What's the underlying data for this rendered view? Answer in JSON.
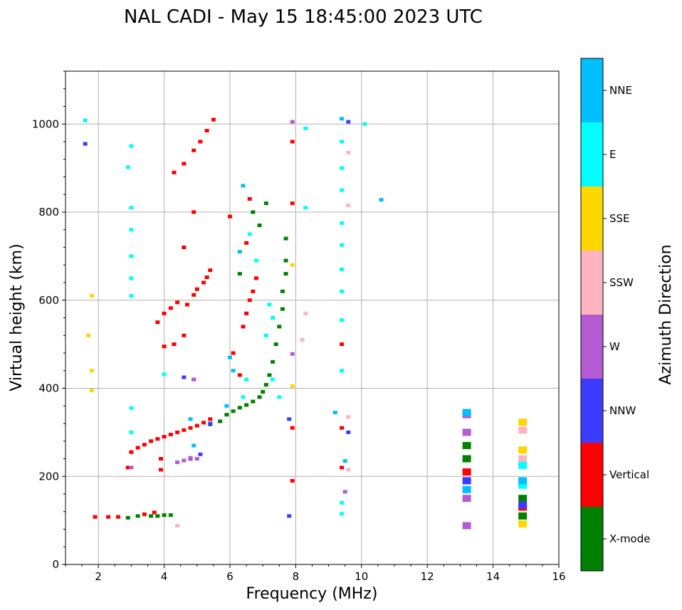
{
  "chart_data": {
    "type": "scatter",
    "title": "NAL CADI - May 15 18:45:00 2023 UTC",
    "xlabel": "Frequency (MHz)",
    "ylabel": "Virtual height (km)",
    "xlim": [
      1,
      16
    ],
    "ylim": [
      0,
      1120
    ],
    "xticks": [
      2,
      4,
      6,
      8,
      10,
      12,
      14,
      16
    ],
    "yticks": [
      0,
      200,
      400,
      600,
      800,
      1000
    ],
    "grid": true,
    "colorbar": {
      "title": "Azimuth Direction",
      "categories": [
        {
          "label": "X-mode",
          "color": "#008000"
        },
        {
          "label": "Vertical",
          "color": "#ff0000"
        },
        {
          "label": "NNW",
          "color": "#3c3cff"
        },
        {
          "label": "W",
          "color": "#b45ad2"
        },
        {
          "label": "SSW",
          "color": "#ffb4c0"
        },
        {
          "label": "SSE",
          "color": "#ffd700"
        },
        {
          "label": "E",
          "color": "#00ffff"
        },
        {
          "label": "NNE",
          "color": "#00bfff"
        }
      ]
    },
    "series": [
      {
        "name": "X-mode",
        "points": [
          [
            2.9,
            106
          ],
          [
            3.2,
            110
          ],
          [
            3.6,
            110
          ],
          [
            3.8,
            110
          ],
          [
            4.0,
            112
          ],
          [
            4.2,
            112
          ],
          [
            5.4,
            318
          ],
          [
            5.7,
            325
          ],
          [
            5.9,
            340
          ],
          [
            6.1,
            348
          ],
          [
            6.3,
            356
          ],
          [
            6.5,
            362
          ],
          [
            6.7,
            370
          ],
          [
            6.9,
            380
          ],
          [
            7.0,
            392
          ],
          [
            7.1,
            408
          ],
          [
            7.2,
            430
          ],
          [
            7.3,
            460
          ],
          [
            7.4,
            500
          ],
          [
            7.5,
            540
          ],
          [
            7.6,
            580
          ],
          [
            7.6,
            620
          ],
          [
            7.7,
            660
          ],
          [
            7.7,
            690
          ],
          [
            7.7,
            740
          ],
          [
            6.9,
            770
          ],
          [
            7.1,
            820
          ],
          [
            6.7,
            800
          ],
          [
            6.3,
            660
          ],
          [
            13.2,
            240
          ],
          [
            13.2,
            270
          ],
          [
            14.9,
            110
          ],
          [
            14.9,
            150
          ]
        ]
      },
      {
        "name": "Vertical",
        "points": [
          [
            1.9,
            108
          ],
          [
            2.3,
            108
          ],
          [
            2.6,
            108
          ],
          [
            3.4,
            114
          ],
          [
            3.7,
            118
          ],
          [
            2.9,
            220
          ],
          [
            3.0,
            255
          ],
          [
            3.2,
            265
          ],
          [
            3.4,
            272
          ],
          [
            3.6,
            280
          ],
          [
            3.8,
            285
          ],
          [
            4.0,
            290
          ],
          [
            4.2,
            295
          ],
          [
            4.4,
            300
          ],
          [
            4.6,
            305
          ],
          [
            4.8,
            310
          ],
          [
            5.0,
            315
          ],
          [
            5.2,
            322
          ],
          [
            5.4,
            330
          ],
          [
            3.9,
            240
          ],
          [
            3.9,
            215
          ],
          [
            4.6,
            520
          ],
          [
            4.7,
            590
          ],
          [
            4.9,
            612
          ],
          [
            5.0,
            625
          ],
          [
            5.2,
            640
          ],
          [
            5.3,
            652
          ],
          [
            5.4,
            668
          ],
          [
            3.8,
            550
          ],
          [
            4.0,
            570
          ],
          [
            4.2,
            582
          ],
          [
            4.4,
            595
          ],
          [
            4.0,
            495
          ],
          [
            4.3,
            500
          ],
          [
            4.3,
            890
          ],
          [
            4.6,
            910
          ],
          [
            4.9,
            940
          ],
          [
            5.1,
            960
          ],
          [
            5.3,
            985
          ],
          [
            5.5,
            1010
          ],
          [
            4.9,
            800
          ],
          [
            4.6,
            720
          ],
          [
            6.0,
            790
          ],
          [
            6.5,
            730
          ],
          [
            6.1,
            480
          ],
          [
            6.3,
            430
          ],
          [
            6.4,
            540
          ],
          [
            6.5,
            570
          ],
          [
            6.6,
            600
          ],
          [
            6.7,
            620
          ],
          [
            6.8,
            650
          ],
          [
            6.6,
            830
          ],
          [
            7.9,
            960
          ],
          [
            7.9,
            820
          ],
          [
            7.9,
            310
          ],
          [
            7.9,
            190
          ],
          [
            9.4,
            500
          ],
          [
            9.4,
            310
          ],
          [
            9.4,
            220
          ],
          [
            13.2,
            210
          ],
          [
            14.9,
            130
          ]
        ]
      },
      {
        "name": "NNW",
        "points": [
          [
            1.6,
            955
          ],
          [
            4.9,
            420
          ],
          [
            4.8,
            240
          ],
          [
            5.4,
            320
          ],
          [
            4.6,
            425
          ],
          [
            5.1,
            250
          ],
          [
            7.8,
            330
          ],
          [
            9.6,
            1005
          ],
          [
            9.6,
            300
          ],
          [
            7.8,
            110
          ],
          [
            13.2,
            190
          ],
          [
            14.9,
            135
          ]
        ]
      },
      {
        "name": "W",
        "points": [
          [
            3.0,
            220
          ],
          [
            4.4,
            232
          ],
          [
            4.6,
            236
          ],
          [
            4.8,
            242
          ],
          [
            5.0,
            240
          ],
          [
            4.9,
            420
          ],
          [
            13.2,
            88
          ],
          [
            13.2,
            150
          ],
          [
            13.2,
            300
          ],
          [
            13.2,
            340
          ],
          [
            7.9,
            478
          ],
          [
            7.9,
            1005
          ],
          [
            9.5,
            165
          ]
        ]
      },
      {
        "name": "SSW",
        "points": [
          [
            8.3,
            570
          ],
          [
            8.2,
            510
          ],
          [
            9.6,
            935
          ],
          [
            9.6,
            815
          ],
          [
            9.6,
            335
          ],
          [
            9.6,
            215
          ],
          [
            4.4,
            88
          ],
          [
            14.9,
            240
          ],
          [
            14.9,
            305
          ]
        ]
      },
      {
        "name": "SSE",
        "points": [
          [
            1.8,
            610
          ],
          [
            1.7,
            520
          ],
          [
            1.8,
            440
          ],
          [
            1.8,
            395
          ],
          [
            7.9,
            680
          ],
          [
            7.9,
            405
          ],
          [
            14.9,
            92
          ],
          [
            14.9,
            260
          ],
          [
            14.9,
            323
          ]
        ]
      },
      {
        "name": "E",
        "points": [
          [
            1.6,
            1008
          ],
          [
            3.0,
            950
          ],
          [
            2.9,
            902
          ],
          [
            3.0,
            810
          ],
          [
            3.0,
            760
          ],
          [
            3.0,
            700
          ],
          [
            3.0,
            650
          ],
          [
            3.0,
            610
          ],
          [
            3.0,
            355
          ],
          [
            3.0,
            300
          ],
          [
            4.0,
            432
          ],
          [
            6.6,
            750
          ],
          [
            6.8,
            690
          ],
          [
            7.2,
            590
          ],
          [
            7.3,
            560
          ],
          [
            7.1,
            520
          ],
          [
            7.3,
            420
          ],
          [
            7.5,
            380
          ],
          [
            6.4,
            380
          ],
          [
            6.5,
            420
          ],
          [
            8.3,
            990
          ],
          [
            8.3,
            810
          ],
          [
            9.4,
            960
          ],
          [
            9.4,
            900
          ],
          [
            9.4,
            850
          ],
          [
            9.4,
            775
          ],
          [
            9.4,
            725
          ],
          [
            9.4,
            670
          ],
          [
            9.4,
            620
          ],
          [
            9.4,
            555
          ],
          [
            9.4,
            440
          ],
          [
            9.4,
            140
          ],
          [
            9.4,
            115
          ],
          [
            10.1,
            1000
          ],
          [
            14.9,
            180
          ],
          [
            14.9,
            225
          ]
        ]
      },
      {
        "name": "NNE",
        "points": [
          [
            6.4,
            860
          ],
          [
            6.3,
            710
          ],
          [
            6.0,
            470
          ],
          [
            6.1,
            440
          ],
          [
            5.9,
            360
          ],
          [
            4.8,
            330
          ],
          [
            4.9,
            270
          ],
          [
            9.4,
            1012
          ],
          [
            9.2,
            345
          ],
          [
            9.5,
            235
          ],
          [
            10.6,
            828
          ],
          [
            13.2,
            170
          ],
          [
            13.2,
            345
          ],
          [
            14.9,
            190
          ]
        ]
      }
    ]
  }
}
